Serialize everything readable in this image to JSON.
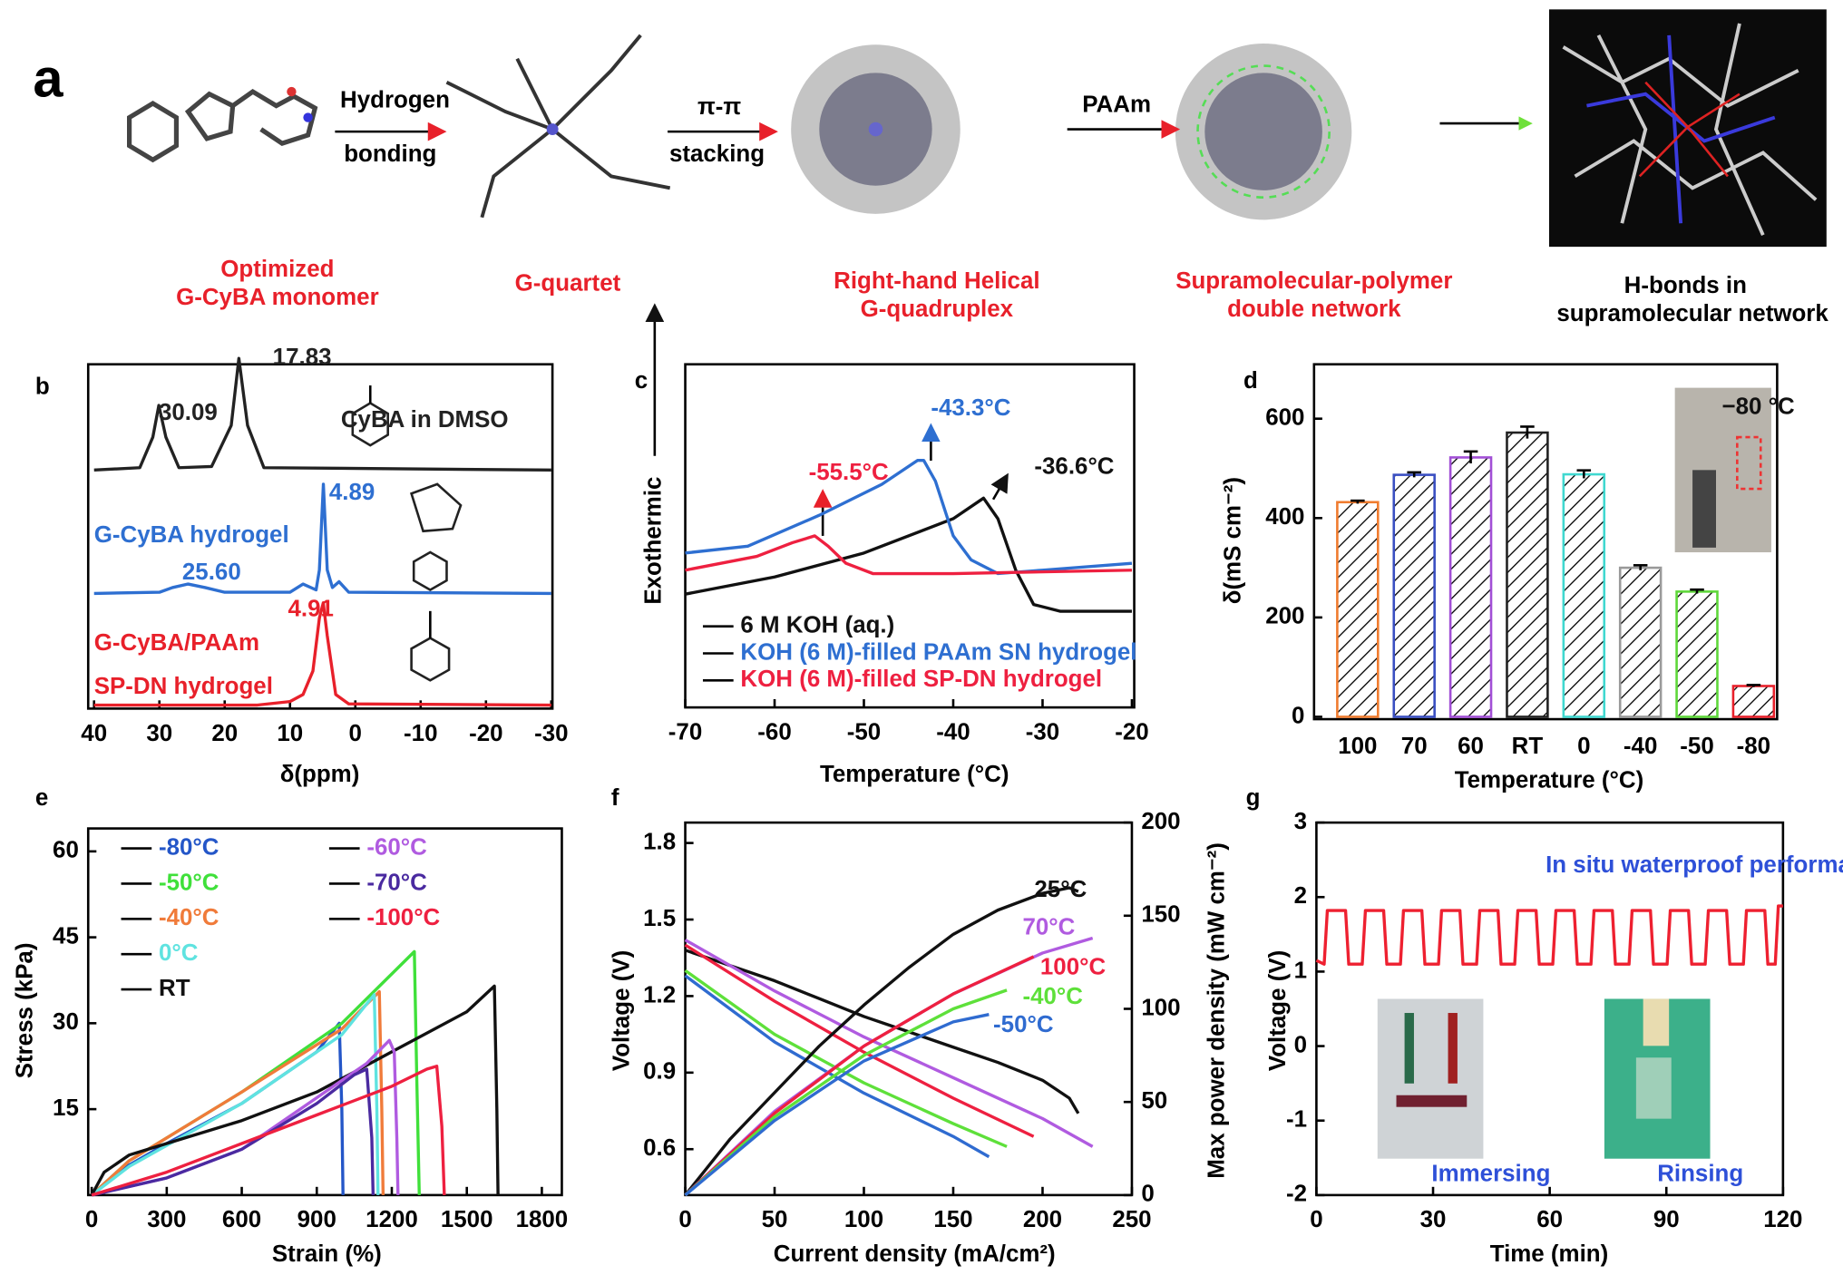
{
  "panel_a": {
    "letter": "a",
    "arrows": [
      [
        "Hydrogen",
        "bonding"
      ],
      [
        "π-π",
        "stacking"
      ],
      [
        "PAAm"
      ]
    ],
    "stages": [
      [
        "Optimized",
        "G-CyBA monomer"
      ],
      [
        "G-quartet"
      ],
      [
        "Right-hand Helical",
        "G-quadruplex"
      ],
      [
        "Supramolecular-polymer",
        "double network"
      ],
      [
        "H-bonds in",
        "supramolecular  network"
      ]
    ]
  },
  "chart_data": [
    {
      "type": "line",
      "panel": "b",
      "xlabel": "δ(ppm)",
      "stacked": true,
      "xlim": [
        40,
        -30
      ],
      "xticks": [
        40,
        30,
        20,
        10,
        0,
        -10,
        -20,
        -30
      ],
      "series": [
        {
          "name": "CyBA  in DMSO",
          "color": "#222222",
          "x": [
            40,
            33,
            31,
            30.09,
            29,
            27,
            22,
            19,
            17.83,
            16.5,
            14,
            -30
          ],
          "values": [
            2,
            4,
            30,
            57,
            30,
            4,
            5,
            40,
            97,
            40,
            4,
            2
          ]
        },
        {
          "name": "G-CyBA  hydrogel",
          "color": "#2e6fd1",
          "x": [
            40,
            30,
            28,
            25.6,
            23,
            20,
            10,
            8,
            6,
            5.5,
            4.89,
            4.3,
            3.5,
            2.5,
            1,
            -30
          ],
          "values": [
            0,
            1,
            5,
            8,
            5,
            1,
            1,
            8,
            3,
            20,
            93,
            20,
            5,
            10,
            1,
            0
          ]
        },
        {
          "name": [
            "G-CyBA/PAAm",
            "SP-DN hydrogel"
          ],
          "color": "#e8202a",
          "x": [
            40,
            15,
            10,
            8,
            6.5,
            5.5,
            4.91,
            4.3,
            3,
            1,
            -30
          ],
          "values": [
            1,
            1,
            4,
            10,
            30,
            75,
            88,
            60,
            10,
            2,
            1
          ]
        }
      ],
      "annotations": [
        {
          "text": "30.09",
          "color": "#222222"
        },
        {
          "text": "17.83",
          "color": "#222222"
        },
        {
          "text": "4.89",
          "color": "#2e6fd1"
        },
        {
          "text": "25.60",
          "color": "#2e6fd1"
        },
        {
          "text": "4.91",
          "color": "#e8202a"
        }
      ]
    },
    {
      "type": "line",
      "panel": "c",
      "xlabel": "Temperature (°C)",
      "ylabel": "Exothermic",
      "xlim": [
        -70,
        -20
      ],
      "xticks": [
        -70,
        -60,
        -50,
        -40,
        -30,
        -20
      ],
      "series": [
        {
          "name": "6 M KOH (aq.)",
          "color": "#111111",
          "x": [
            -70,
            -60,
            -50,
            -40,
            -36.6,
            -35,
            -33,
            -31,
            -28,
            -20
          ],
          "values": [
            33,
            38,
            45,
            55,
            61,
            55,
            40,
            30,
            28,
            28
          ]
        },
        {
          "name": "KOH (6 M)-filled  PAAm SN hydrogel",
          "color": "#2e6fd1",
          "x": [
            -70,
            -63,
            -55,
            -48,
            -44,
            -43.3,
            -42,
            -40,
            -38,
            -35,
            -30,
            -20
          ],
          "values": [
            45,
            47,
            56,
            65,
            72,
            72,
            66,
            50,
            43,
            39,
            40,
            42
          ]
        },
        {
          "name": "KOH (6 M)-filled  SP-DN hydrogel",
          "color": "#ee2040",
          "x": [
            -70,
            -62,
            -58,
            -55.5,
            -54,
            -52,
            -49,
            -40,
            -20
          ],
          "values": [
            40,
            44,
            48,
            50,
            47,
            42,
            39,
            39,
            40
          ]
        }
      ],
      "annotations": [
        {
          "text": "-55.5°C",
          "color": "#ee2040"
        },
        {
          "text": "-43.3°C",
          "color": "#2e6fd1"
        },
        {
          "text": "-36.6°C",
          "color": "#111111"
        }
      ]
    },
    {
      "type": "bar",
      "panel": "d",
      "xlabel": "Temperature (°C)",
      "ylabel": "δ(mS cm⁻²)",
      "hatch": true,
      "categories": [
        "100",
        "70",
        "60",
        "RT",
        "0",
        "-40",
        "-50",
        "-80"
      ],
      "values": [
        432,
        487,
        522,
        572,
        488,
        300,
        252,
        62
      ],
      "errors": [
        3,
        5,
        12,
        12,
        8,
        5,
        4,
        2
      ],
      "colors": [
        "#f07c2f",
        "#3a4fc2",
        "#a24fd6",
        "#222222",
        "#40d8d0",
        "#9a9a9a",
        "#5ed83a",
        "#e8202a"
      ],
      "ylim": [
        0,
        700
      ],
      "yticks": [
        0,
        200,
        400,
        600
      ],
      "annotations": [
        {
          "text": "−80 °C",
          "color": "#111111"
        }
      ]
    },
    {
      "type": "line",
      "panel": "e",
      "xlabel": "Strain (%)",
      "ylabel": "Stress (kPa)",
      "legend": true,
      "xlim": [
        0,
        1880
      ],
      "xticks": [
        0,
        300,
        600,
        900,
        1200,
        1500,
        1800
      ],
      "ylim": [
        0,
        64
      ],
      "yticks": [
        15,
        30,
        45,
        60
      ],
      "series": [
        {
          "name": "-80°C",
          "color": "#2456c8",
          "x": [
            0,
            100,
            300,
            600,
            900,
            990,
            1000,
            1005
          ],
          "values": [
            0,
            4,
            9,
            16,
            25,
            30,
            15,
            0
          ]
        },
        {
          "name": "-50°C",
          "color": "#3fe03a",
          "x": [
            0,
            150,
            600,
            1000,
            1290,
            1300,
            1310
          ],
          "values": [
            0,
            6,
            18,
            30,
            42.5,
            20,
            0
          ]
        },
        {
          "name": "-40°C",
          "color": "#f07b3a",
          "x": [
            0,
            150,
            600,
            1000,
            1150,
            1160,
            1165
          ],
          "values": [
            0,
            6,
            18,
            29,
            35.5,
            15,
            0
          ]
        },
        {
          "name": "0°C",
          "color": "#5fe3e0",
          "x": [
            0,
            150,
            600,
            1000,
            1130,
            1140,
            1145
          ],
          "values": [
            0,
            5,
            16,
            28,
            35,
            15,
            0
          ]
        },
        {
          "name": "RT",
          "color": "#111111",
          "x": [
            0,
            50,
            150,
            300,
            600,
            900,
            1200,
            1500,
            1610,
            1620,
            1625
          ],
          "values": [
            0,
            4,
            7,
            9,
            13,
            18,
            25,
            32,
            36.5,
            15,
            0
          ]
        },
        {
          "name": "-60°C",
          "color": "#b05be0",
          "x": [
            0,
            300,
            600,
            900,
            1100,
            1190,
            1210,
            1220,
            1225
          ],
          "values": [
            0,
            3,
            8,
            17,
            23,
            27,
            25,
            10,
            0
          ]
        },
        {
          "name": "-70°C",
          "color": "#4a2aa0",
          "x": [
            0,
            300,
            600,
            900,
            1050,
            1100,
            1120,
            1125
          ],
          "values": [
            0,
            3,
            8,
            16,
            21,
            22,
            10,
            0
          ]
        },
        {
          "name": "-100°C",
          "color": "#ee2040",
          "x": [
            0,
            300,
            600,
            900,
            1200,
            1340,
            1380,
            1400,
            1410
          ],
          "values": [
            0,
            4,
            9,
            14,
            19,
            22,
            22.5,
            12,
            0
          ]
        }
      ]
    },
    {
      "type": "line",
      "panel": "f",
      "xlabel": "Current density (mA/cm²)",
      "ylabel": "Voltage (V)",
      "y2label": "Max power density (mW cm⁻²)",
      "xlim": [
        0,
        250
      ],
      "xticks": [
        0,
        50,
        100,
        150,
        200,
        250
      ],
      "ylim": [
        0.42,
        1.88
      ],
      "yticks": [
        0.6,
        0.9,
        1.2,
        1.5,
        1.8
      ],
      "y2lim": [
        0,
        200
      ],
      "y2ticks": [
        0,
        50,
        100,
        150,
        200
      ],
      "series": [
        {
          "color": "#111111",
          "x": [
            0,
            25,
            50,
            75,
            100,
            125,
            150,
            175,
            200,
            215,
            220
          ],
          "values": [
            1.38,
            1.32,
            1.26,
            1.19,
            1.12,
            1.06,
            1.0,
            0.94,
            0.87,
            0.8,
            0.74
          ]
        },
        {
          "color": "#b05be0",
          "x": [
            0,
            50,
            100,
            150,
            200,
            228
          ],
          "values": [
            1.42,
            1.22,
            1.04,
            0.88,
            0.72,
            0.61
          ]
        },
        {
          "color": "#ee2040",
          "x": [
            0,
            50,
            100,
            150,
            195
          ],
          "values": [
            1.4,
            1.18,
            0.98,
            0.8,
            0.65
          ]
        },
        {
          "color": "#5ee03a",
          "x": [
            0,
            50,
            100,
            150,
            180
          ],
          "values": [
            1.3,
            1.05,
            0.86,
            0.7,
            0.61
          ]
        },
        {
          "color": "#2f6bd0",
          "x": [
            0,
            50,
            100,
            150,
            170
          ],
          "values": [
            1.28,
            1.02,
            0.82,
            0.65,
            0.57
          ]
        },
        {
          "name": "25°C",
          "axis": "y2",
          "color": "#111111",
          "x": [
            0,
            25,
            50,
            75,
            100,
            125,
            150,
            175,
            200,
            215,
            220
          ],
          "values": [
            0,
            30,
            55,
            80,
            102,
            122,
            140,
            153,
            162,
            165,
            163
          ]
        },
        {
          "name": "70°C",
          "axis": "y2",
          "color": "#b05be0",
          "x": [
            0,
            50,
            100,
            150,
            200,
            228
          ],
          "values": [
            0,
            45,
            80,
            108,
            130,
            138
          ]
        },
        {
          "name": "100°C",
          "axis": "y2",
          "color": "#ee2040",
          "x": [
            0,
            50,
            100,
            150,
            195
          ],
          "values": [
            0,
            44,
            80,
            108,
            128
          ]
        },
        {
          "name": "-40°C",
          "axis": "y2",
          "color": "#5ee03a",
          "x": [
            0,
            50,
            100,
            150,
            180
          ],
          "values": [
            0,
            42,
            75,
            100,
            110
          ]
        },
        {
          "name": "-50°C",
          "axis": "y2",
          "color": "#2f6bd0",
          "x": [
            0,
            50,
            100,
            150,
            170
          ],
          "values": [
            0,
            40,
            72,
            93,
            97
          ]
        }
      ]
    },
    {
      "type": "line",
      "panel": "g",
      "xlabel": "Time (min)",
      "ylabel": "Voltage (V)",
      "xlim": [
        0,
        120
      ],
      "xticks": [
        0,
        30,
        60,
        90,
        120
      ],
      "ylim": [
        -2,
        3
      ],
      "yticks": [
        -2,
        -1,
        0,
        1,
        2,
        3
      ],
      "series": [
        {
          "color": "#ee2030",
          "x": [
            0,
            2,
            2.8,
            7.5,
            8.3,
            11.8,
            12.6,
            17.3,
            18.1,
            21.6,
            22.4,
            27.1,
            27.9,
            31.4,
            32.2,
            36.9,
            37.7,
            41.2,
            42,
            46.7,
            47.5,
            51,
            51.8,
            56.5,
            57.3,
            60.8,
            61.6,
            66.3,
            67.1,
            70.6,
            71.4,
            76.1,
            76.9,
            80.4,
            81.2,
            85.9,
            86.7,
            90.2,
            91,
            95.7,
            96.5,
            100,
            100.8,
            105.5,
            106.3,
            109.8,
            110.6,
            115.3,
            116.1,
            118,
            118.8,
            120
          ],
          "values": [
            1.15,
            1.1,
            1.82,
            1.82,
            1.1,
            1.1,
            1.82,
            1.82,
            1.1,
            1.1,
            1.82,
            1.82,
            1.1,
            1.1,
            1.82,
            1.82,
            1.1,
            1.1,
            1.82,
            1.82,
            1.1,
            1.1,
            1.82,
            1.82,
            1.1,
            1.1,
            1.82,
            1.82,
            1.1,
            1.1,
            1.82,
            1.82,
            1.1,
            1.1,
            1.82,
            1.82,
            1.1,
            1.1,
            1.82,
            1.82,
            1.1,
            1.1,
            1.82,
            1.82,
            1.1,
            1.1,
            1.82,
            1.82,
            1.1,
            1.1,
            1.88,
            1.88
          ]
        }
      ],
      "annotations": [
        {
          "text": "In situ waterproof performance test",
          "color": "#2e50d8"
        },
        {
          "text": "Immersing",
          "color": "#2e50d8"
        },
        {
          "text": "Rinsing",
          "color": "#2e50d8"
        }
      ]
    }
  ]
}
